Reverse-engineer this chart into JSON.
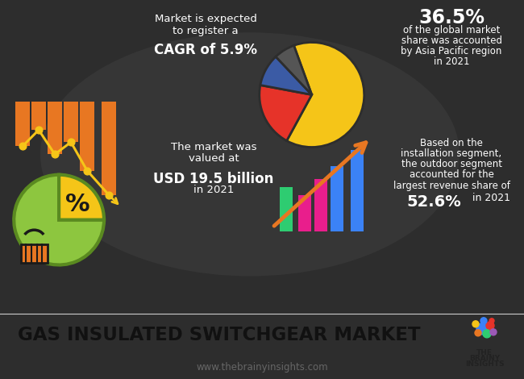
{
  "bg_color": "#2d2d2d",
  "footer_bg": "#ebebeb",
  "title": "GAS INSULATED SWITCHGEAR MARKET",
  "website": "www.thebrainyinsights.com",
  "cagr_line1": "Market is expected",
  "cagr_line2": "to register a",
  "cagr_bold": "CAGR of 5.9%",
  "asia_pct": "36.5%",
  "asia_line1": "of the global market",
  "asia_line2": "share was accounted",
  "asia_line3": "by Asia Pacific region",
  "asia_line4": "in 2021",
  "market_line1": "The market was",
  "market_line2": "valued at",
  "market_bold": "USD 19.5 billion",
  "market_line3": "in 2021",
  "install_line1": "Based on the",
  "install_line2": "installation segment,",
  "install_line3": "the outdoor segment",
  "install_line4": "accounted for the",
  "install_line5": "largest revenue share of",
  "install_bold": "52.6%",
  "install_year": " in 2021",
  "pie_colors": [
    "#f5c518",
    "#e63329",
    "#3b5ba5",
    "#555555"
  ],
  "pie_sizes": [
    63.5,
    20,
    10,
    6.5
  ],
  "green_pie_colors": [
    "#8dc63f",
    "#f5c518"
  ],
  "green_pie_sizes": [
    75,
    25
  ],
  "orange_color": "#e87722",
  "yellow_color": "#f5c518",
  "green_color": "#8dc63f",
  "bar_top_color": "#e87722",
  "bar_bottom_colors": [
    "#2ecc71",
    "#e91e8c",
    "#e91e8c",
    "#3b82f6",
    "#3b82f6"
  ],
  "bar_bottom_heights": [
    55,
    45,
    65,
    80,
    100
  ],
  "logo_circles": [
    [
      0,
      8,
      7,
      "#3b82f6"
    ],
    [
      10,
      12,
      5,
      "#e63329"
    ],
    [
      -8,
      14,
      4,
      "#f5c518"
    ],
    [
      6,
      2,
      5,
      "#2ecc71"
    ],
    [
      -5,
      3,
      4,
      "#e87722"
    ],
    [
      14,
      4,
      4,
      "#9b59b6"
    ],
    [
      2,
      18,
      4,
      "#3b82f6"
    ],
    [
      12,
      18,
      3,
      "#e63329"
    ]
  ]
}
